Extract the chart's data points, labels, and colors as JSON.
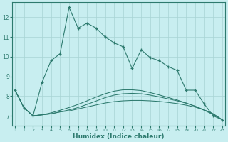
{
  "xlabel": "Humidex (Indice chaleur)",
  "x_values": [
    0,
    1,
    2,
    3,
    4,
    5,
    6,
    7,
    8,
    9,
    10,
    11,
    12,
    13,
    14,
    15,
    16,
    17,
    18,
    19,
    20,
    21,
    22,
    23
  ],
  "line_main": [
    8.3,
    7.4,
    7.0,
    8.7,
    9.8,
    10.15,
    12.5,
    11.45,
    11.7,
    11.45,
    11.0,
    10.7,
    10.5,
    9.4,
    10.35,
    9.95,
    9.8,
    9.5,
    9.3,
    8.3,
    8.3,
    7.6,
    7.0,
    6.8
  ],
  "line3": [
    8.3,
    7.4,
    7.0,
    7.05,
    7.1,
    7.2,
    7.25,
    7.35,
    7.45,
    7.55,
    7.65,
    7.72,
    7.76,
    7.78,
    7.78,
    7.76,
    7.73,
    7.68,
    7.62,
    7.54,
    7.44,
    7.3,
    7.1,
    6.8
  ],
  "line4": [
    8.3,
    7.4,
    7.0,
    7.05,
    7.1,
    7.2,
    7.3,
    7.42,
    7.58,
    7.75,
    7.92,
    8.05,
    8.12,
    8.14,
    8.12,
    8.05,
    7.96,
    7.86,
    7.76,
    7.64,
    7.49,
    7.3,
    7.1,
    6.8
  ],
  "line5": [
    8.3,
    7.4,
    7.0,
    7.05,
    7.15,
    7.28,
    7.42,
    7.58,
    7.76,
    7.95,
    8.12,
    8.25,
    8.32,
    8.32,
    8.28,
    8.18,
    8.06,
    7.93,
    7.8,
    7.65,
    7.48,
    7.28,
    7.06,
    6.8
  ],
  "color": "#2d7a6e",
  "bg_color": "#c8eef0",
  "grid_color": "#a8d4d4",
  "ylim": [
    6.5,
    12.75
  ],
  "yticks": [
    7,
    8,
    9,
    10,
    11,
    12
  ],
  "xticks": [
    0,
    1,
    2,
    3,
    4,
    5,
    6,
    7,
    8,
    9,
    10,
    11,
    12,
    13,
    14,
    15,
    16,
    17,
    18,
    19,
    20,
    21,
    22,
    23
  ]
}
